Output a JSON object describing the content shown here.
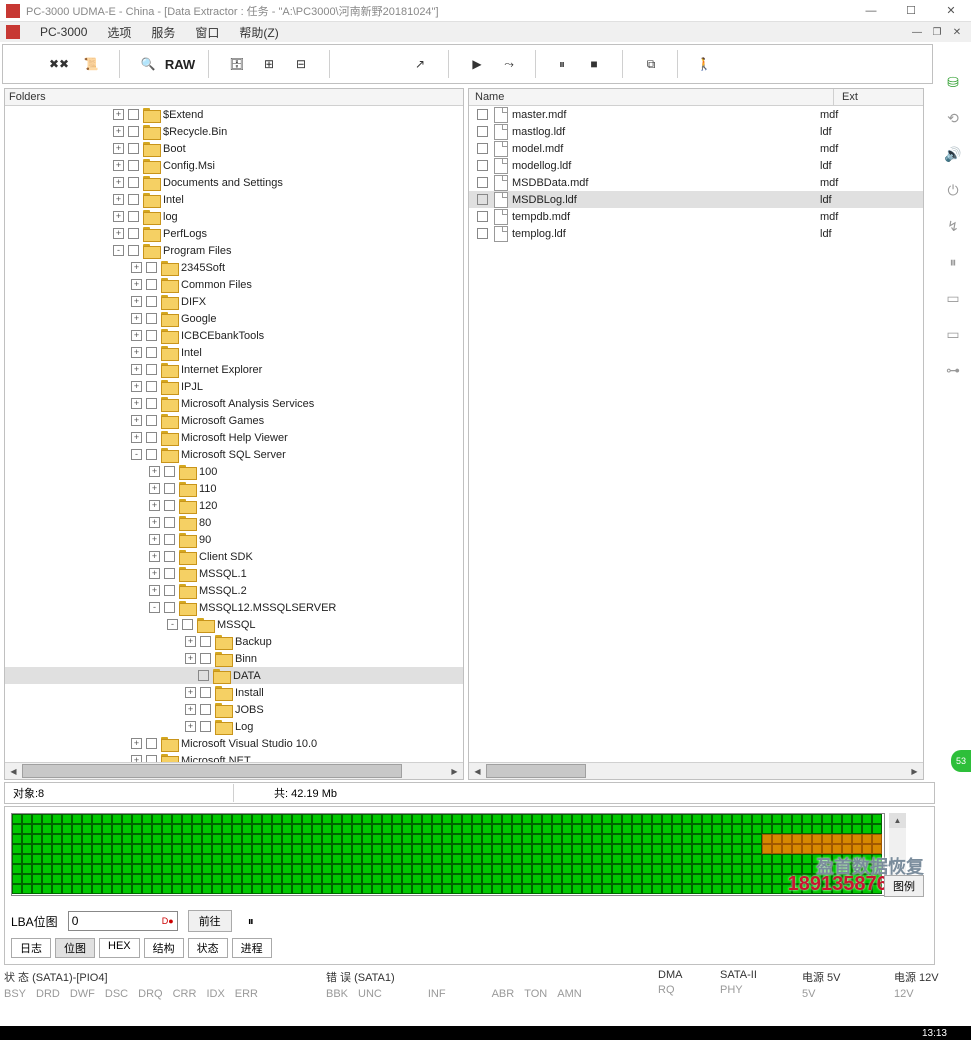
{
  "window": {
    "title": "PC-3000 UDMA-E - China - [Data Extractor : 任务 - \"A:\\PC3000\\河南新野20181024\"]"
  },
  "menu": {
    "app": "PC-3000",
    "items": [
      "选项",
      "服务",
      "窗口",
      "帮助(Z)"
    ]
  },
  "toolbar": {
    "raw": "RAW"
  },
  "panels": {
    "folders_header": "Folders",
    "name_col": "Name",
    "ext_col": "Ext"
  },
  "tree": [
    {
      "level": 0,
      "exp": "+",
      "label": "$Extend"
    },
    {
      "level": 0,
      "exp": "+",
      "label": "$Recycle.Bin"
    },
    {
      "level": 0,
      "exp": "+",
      "label": "Boot"
    },
    {
      "level": 0,
      "exp": "+",
      "label": "Config.Msi"
    },
    {
      "level": 0,
      "exp": "+",
      "label": "Documents and Settings"
    },
    {
      "level": 0,
      "exp": "+",
      "label": "Intel"
    },
    {
      "level": 0,
      "exp": "+",
      "label": "log"
    },
    {
      "level": 0,
      "exp": "+",
      "label": "PerfLogs"
    },
    {
      "level": 0,
      "exp": "-",
      "label": "Program Files"
    },
    {
      "level": 1,
      "exp": "+",
      "label": "2345Soft"
    },
    {
      "level": 1,
      "exp": "+",
      "label": "Common Files"
    },
    {
      "level": 1,
      "exp": "+",
      "label": "DIFX"
    },
    {
      "level": 1,
      "exp": "+",
      "label": "Google"
    },
    {
      "level": 1,
      "exp": "+",
      "label": "ICBCEbankTools"
    },
    {
      "level": 1,
      "exp": "+",
      "label": "Intel"
    },
    {
      "level": 1,
      "exp": "+",
      "label": "Internet Explorer"
    },
    {
      "level": 1,
      "exp": "+",
      "label": "IPJL"
    },
    {
      "level": 1,
      "exp": "+",
      "label": "Microsoft Analysis Services"
    },
    {
      "level": 1,
      "exp": "+",
      "label": "Microsoft Games"
    },
    {
      "level": 1,
      "exp": "+",
      "label": "Microsoft Help Viewer"
    },
    {
      "level": 1,
      "exp": "-",
      "label": "Microsoft SQL Server"
    },
    {
      "level": 2,
      "exp": "+",
      "label": "100"
    },
    {
      "level": 2,
      "exp": "+",
      "label": "110"
    },
    {
      "level": 2,
      "exp": "+",
      "label": "120"
    },
    {
      "level": 2,
      "exp": "+",
      "label": "80"
    },
    {
      "level": 2,
      "exp": "+",
      "label": "90"
    },
    {
      "level": 2,
      "exp": "+",
      "label": "Client SDK"
    },
    {
      "level": 2,
      "exp": "+",
      "label": "MSSQL.1"
    },
    {
      "level": 2,
      "exp": "+",
      "label": "MSSQL.2"
    },
    {
      "level": 2,
      "exp": "-",
      "label": "MSSQL12.MSSQLSERVER"
    },
    {
      "level": 3,
      "exp": "-",
      "label": "MSSQL"
    },
    {
      "level": 4,
      "exp": "+",
      "label": "Backup"
    },
    {
      "level": 4,
      "exp": "+",
      "label": "Binn"
    },
    {
      "level": 4,
      "exp": " ",
      "label": "DATA",
      "selected": true
    },
    {
      "level": 4,
      "exp": "+",
      "label": "Install"
    },
    {
      "level": 4,
      "exp": "+",
      "label": "JOBS"
    },
    {
      "level": 4,
      "exp": "+",
      "label": "Log"
    },
    {
      "level": 1,
      "exp": "+",
      "label": "Microsoft Visual Studio 10.0"
    },
    {
      "level": 1,
      "exp": "+",
      "label": "Microsoft.NET"
    }
  ],
  "files": [
    {
      "name": "master.mdf",
      "ext": "mdf"
    },
    {
      "name": "mastlog.ldf",
      "ext": "ldf"
    },
    {
      "name": "model.mdf",
      "ext": "mdf"
    },
    {
      "name": "modellog.ldf",
      "ext": "ldf"
    },
    {
      "name": "MSDBData.mdf",
      "ext": "mdf"
    },
    {
      "name": "MSDBLog.ldf",
      "ext": "ldf",
      "selected": true
    },
    {
      "name": "tempdb.mdf",
      "ext": "mdf"
    },
    {
      "name": "templog.ldf",
      "ext": "ldf"
    }
  ],
  "info": {
    "objects": "对象:8",
    "total": "共:  42.19 Mb"
  },
  "lba": {
    "label": "LBA位图",
    "value": "0",
    "go": "前往",
    "legend": "图例"
  },
  "tabs": [
    "日志",
    "位图",
    "HEX",
    "结构",
    "状态",
    "进程"
  ],
  "active_tab": "位图",
  "watermark1": "盈首数据恢复",
  "watermark2": "18913587626",
  "status": {
    "g1": {
      "title": "状 态 (SATA1)-[PIO4]",
      "items": [
        "BSY",
        "DRD",
        "DWF",
        "DSC",
        "DRQ",
        "CRR",
        "IDX",
        "ERR"
      ]
    },
    "g2": {
      "title": "错 误 (SATA1)",
      "items": [
        "BBK",
        "UNC",
        "",
        "INF",
        "",
        "ABR",
        "TON",
        "AMN"
      ]
    },
    "g3": {
      "title": "DMA",
      "items": [
        "RQ"
      ]
    },
    "g4": {
      "title": "SATA-II",
      "items": [
        "PHY"
      ]
    },
    "g5": {
      "title": "电源 5V",
      "items": [
        "5V"
      ]
    },
    "g6": {
      "title": "电源 12V",
      "items": [
        "12V"
      ]
    }
  },
  "sectors": {
    "rows": 8,
    "cols": 87,
    "orange_start_col": 75
  },
  "green_badge": "53",
  "clock": "13:13",
  "colors": {
    "green": "#00c800",
    "green_border": "#006400",
    "orange": "#d68800",
    "red": "#c8162f"
  }
}
